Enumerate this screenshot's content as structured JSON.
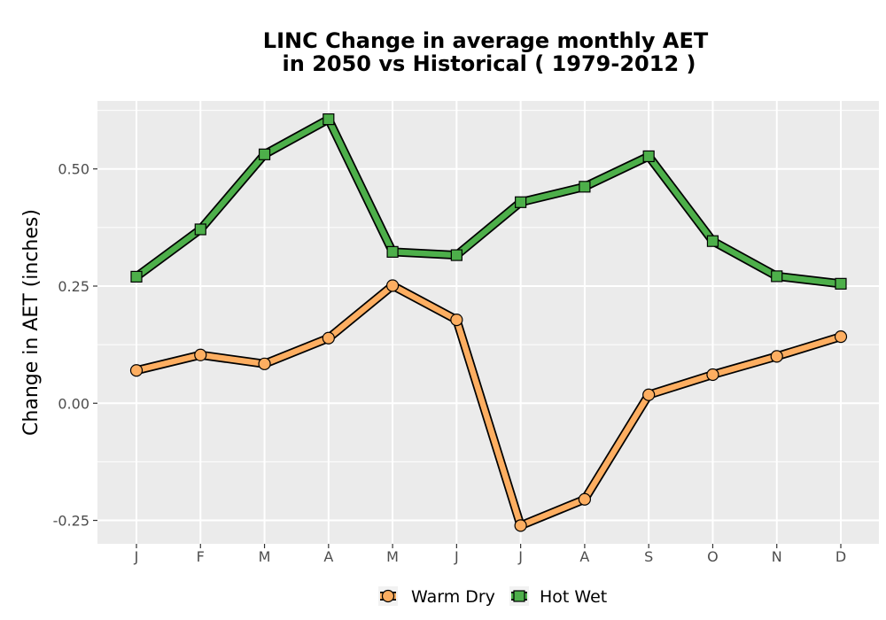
{
  "chart_data": {
    "type": "line",
    "title_line1": "LINC  Change in average monthly AET",
    "title_line2": "in 2050 vs Historical ( 1979-2012 )",
    "xlabel": "",
    "ylabel": "Change in AET (inches)",
    "categories": [
      "J",
      "F",
      "M",
      "A",
      "M",
      "J",
      "J",
      "A",
      "S",
      "O",
      "N",
      "D"
    ],
    "ylim": [
      -0.3,
      0.645
    ],
    "yticks": [
      -0.25,
      0.0,
      0.25,
      0.5
    ],
    "ytick_labels": [
      "-0.25",
      "0.00",
      "0.25",
      "0.50"
    ],
    "grid": true,
    "legend_position": "bottom",
    "series": [
      {
        "name": "Warm Dry",
        "marker": "circle",
        "color": "#FDAE61",
        "values": [
          0.07,
          0.103,
          0.084,
          0.139,
          0.251,
          0.178,
          -0.261,
          -0.205,
          0.018,
          0.061,
          0.1,
          0.142
        ]
      },
      {
        "name": "Hot Wet",
        "marker": "square",
        "color": "#4DAF4A",
        "values": [
          0.27,
          0.371,
          0.531,
          0.606,
          0.323,
          0.316,
          0.429,
          0.462,
          0.527,
          0.346,
          0.271,
          0.255
        ]
      }
    ]
  }
}
